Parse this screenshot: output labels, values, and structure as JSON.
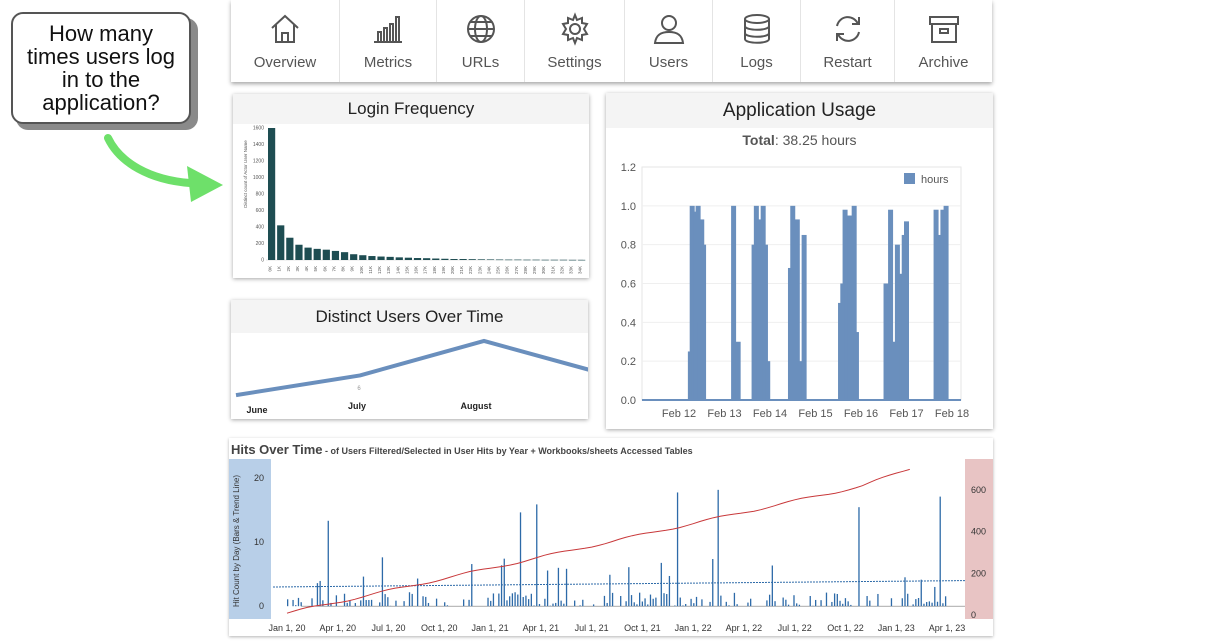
{
  "callout": {
    "text": "How many times users log in to the application?"
  },
  "nav": {
    "items": [
      {
        "label": "Overview",
        "icon": "home-icon"
      },
      {
        "label": "Metrics",
        "icon": "bar-chart-icon"
      },
      {
        "label": "URLs",
        "icon": "globe-icon"
      },
      {
        "label": "Settings",
        "icon": "gear-icon"
      },
      {
        "label": "Users",
        "icon": "user-icon"
      },
      {
        "label": "Logs",
        "icon": "database-icon"
      },
      {
        "label": "Restart",
        "icon": "refresh-icon"
      },
      {
        "label": "Archive",
        "icon": "archive-icon"
      }
    ]
  },
  "login_frequency": {
    "title": "Login Frequency",
    "chart_data": {
      "type": "bar",
      "ylabel": "Distinct count of Actor User Name",
      "ylim": [
        0,
        1600
      ],
      "yticks": [
        0,
        200,
        400,
        600,
        800,
        1000,
        1200,
        1400,
        1600
      ],
      "categories": [
        "0K",
        "1K",
        "2K",
        "3K",
        "4K",
        "5K",
        "6K",
        "7K",
        "8K",
        "9K",
        "10K",
        "11K",
        "12K",
        "13K",
        "14K",
        "15K",
        "16K",
        "17K",
        "18K",
        "19K",
        "20K",
        "21K",
        "22K",
        "23K",
        "24K",
        "25K",
        "26K",
        "27K",
        "28K",
        "29K",
        "30K",
        "31K",
        "32K",
        "33K",
        "34K"
      ],
      "values": [
        1600,
        420,
        270,
        185,
        150,
        135,
        125,
        110,
        95,
        70,
        58,
        48,
        42,
        38,
        32,
        28,
        24,
        22,
        18,
        15,
        12,
        12,
        10,
        8,
        7,
        6,
        5,
        5,
        4,
        4,
        3,
        3,
        3,
        2,
        2
      ],
      "color": "#1e4d52"
    }
  },
  "application_usage": {
    "title": "Application Usage",
    "total_label": "Total",
    "total_value": ": 38.25 hours",
    "chart_data": {
      "type": "bar",
      "ylim": [
        0,
        1.2
      ],
      "yticks": [
        "0.0",
        "0.2",
        "0.4",
        "0.6",
        "0.8",
        "1.0",
        "1.2"
      ],
      "xticks": [
        "Feb 12",
        "Feb 13",
        "Feb 14",
        "Feb 15",
        "Feb 16",
        "Feb 17",
        "Feb 18"
      ],
      "legend": "hours",
      "color": "#6a8fbd",
      "bars": [
        [
          12.25,
          0.25
        ],
        [
          12.29,
          1.0
        ],
        [
          12.33,
          0.6
        ],
        [
          12.38,
          0.97
        ],
        [
          12.42,
          1.0
        ],
        [
          12.46,
          0.4
        ],
        [
          12.5,
          0.93
        ],
        [
          12.54,
          0.8
        ],
        [
          13.2,
          1.0
        ],
        [
          13.3,
          0.3
        ],
        [
          13.65,
          0.8
        ],
        [
          13.7,
          1.0
        ],
        [
          13.75,
          0.93
        ],
        [
          13.8,
          0.6
        ],
        [
          13.85,
          1.0
        ],
        [
          13.9,
          0.8
        ],
        [
          13.95,
          0.2
        ],
        [
          14.45,
          0.68
        ],
        [
          14.5,
          1.0
        ],
        [
          14.55,
          0.8
        ],
        [
          14.6,
          0.93
        ],
        [
          14.65,
          0.2
        ],
        [
          14.75,
          0.85
        ],
        [
          15.55,
          0.5
        ],
        [
          15.6,
          0.6
        ],
        [
          15.65,
          0.98
        ],
        [
          15.7,
          0.8
        ],
        [
          15.75,
          0.95
        ],
        [
          15.8,
          0.65
        ],
        [
          15.85,
          1.0
        ],
        [
          15.9,
          0.35
        ],
        [
          16.55,
          0.6
        ],
        [
          16.6,
          0.5
        ],
        [
          16.65,
          0.98
        ],
        [
          16.72,
          0.3
        ],
        [
          16.8,
          0.8
        ],
        [
          16.85,
          0.58
        ],
        [
          16.9,
          0.65
        ],
        [
          16.95,
          0.85
        ],
        [
          17.0,
          0.92
        ],
        [
          17.65,
          0.98
        ],
        [
          17.72,
          0.85
        ],
        [
          17.8,
          0.98
        ],
        [
          17.87,
          1.0
        ]
      ]
    }
  },
  "distinct_users": {
    "title": "Distinct Users Over Time",
    "chart_data": {
      "type": "line",
      "categories": [
        "June",
        "July",
        "August"
      ],
      "values": [
        2,
        6,
        13
      ],
      "annotation": "6",
      "color": "#6a8fbd"
    }
  },
  "hits_over_time": {
    "title": "Hits Over Time",
    "subtitle": " - of Users Filtered/Selected in User Hits by Year + Workbooks/sheets Accessed Tables",
    "ylabel": "Hit Count by Day (Bars & Trend Line)",
    "chart_data": {
      "type": "bar",
      "ylim_left": [
        -2,
        23
      ],
      "yticks_left": [
        "0",
        "10",
        "20"
      ],
      "ylim_right": [
        -20,
        750
      ],
      "yticks_right": [
        "0",
        "200",
        "400",
        "600"
      ],
      "xticks": [
        "Jan 1, 20",
        "Apr 1, 20",
        "Jul 1, 20",
        "Oct 1, 20",
        "Jan 1, 21",
        "Apr 1, 21",
        "Jul 1, 21",
        "Oct 1, 21",
        "Jan 1, 22",
        "Apr 1, 22",
        "Jul 1, 22",
        "Oct 1, 22",
        "Jan 1, 23",
        "Apr 1, 23"
      ],
      "bar_color": "#2d6aa8",
      "cumulative_color": "#c8383a",
      "trend_color": "#2d6aa8",
      "left_band_color": "#b8cfe8",
      "right_band_color": "#e8c4c4"
    }
  }
}
